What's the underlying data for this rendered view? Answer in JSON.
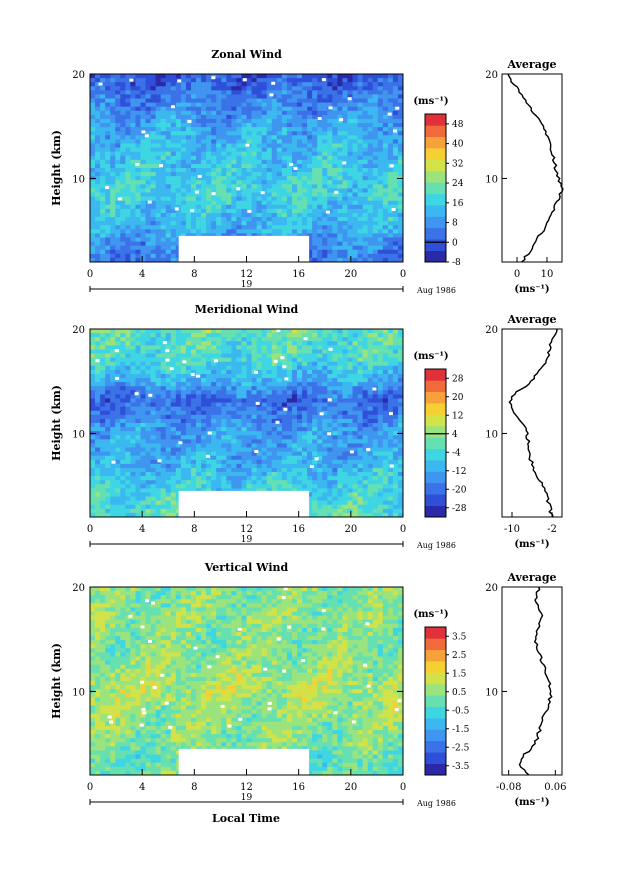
{
  "figure": {
    "xlabel": "Local Time",
    "ylabel": "Height (km)",
    "date_label": "Aug 1986",
    "day_label": "19"
  },
  "chart_data": [
    {
      "type": "heatmap",
      "title": "Zonal Wind",
      "x_ticks": [
        "0",
        "4",
        "8",
        "12",
        "16",
        "20",
        "0"
      ],
      "xlim": [
        0,
        24
      ],
      "y_ticks": [
        "20",
        "10"
      ],
      "ylim": [
        2,
        20
      ],
      "units": "(ms⁻¹)",
      "colorbar_ticks": [
        "48",
        "40",
        "32",
        "24",
        "16",
        "8",
        "0",
        "-8"
      ],
      "colorbar_range": [
        -8,
        52
      ],
      "colors": [
        "#2a2aa8",
        "#2f4fd8",
        "#3b72e8",
        "#3f95ef",
        "#3cb8f0",
        "#3fd6e4",
        "#66e0b0",
        "#9be37c",
        "#d2e34a",
        "#f6d033",
        "#f7a13a",
        "#f06a3b",
        "#e0303a"
      ],
      "missing_block": {
        "x": [
          6.8,
          16.8
        ],
        "y": [
          2,
          4.5
        ]
      },
      "profile": {
        "title": "Average",
        "x_ticks": [
          "0",
          "10"
        ],
        "xlim": [
          -5,
          15
        ],
        "xlabel": "(ms⁻¹)",
        "y_ticks": [
          "20",
          "10"
        ],
        "height": [
          2,
          3,
          4,
          5,
          6,
          7,
          8,
          9,
          10,
          11,
          12,
          13,
          14,
          15,
          16,
          17,
          18,
          19,
          20
        ],
        "value": [
          2,
          4,
          6,
          9,
          11,
          12,
          14,
          15,
          14,
          13,
          12,
          11,
          10,
          9,
          6,
          4,
          2,
          -1,
          -3
        ]
      }
    },
    {
      "type": "heatmap",
      "title": "Meridional Wind",
      "x_ticks": [
        "0",
        "4",
        "8",
        "12",
        "16",
        "20",
        "0"
      ],
      "xlim": [
        0,
        24
      ],
      "y_ticks": [
        "20",
        "10"
      ],
      "ylim": [
        2,
        20
      ],
      "units": "(ms⁻¹)",
      "colorbar_ticks": [
        "28",
        "20",
        "12",
        "4",
        "-4",
        "-12",
        "-20",
        "-28"
      ],
      "colorbar_range": [
        -32,
        32
      ],
      "colors": [
        "#2a2aa8",
        "#2f4fd8",
        "#3b72e8",
        "#3f95ef",
        "#3cb8f0",
        "#3fd6e4",
        "#66e0b0",
        "#9be37c",
        "#d2e34a",
        "#f6d033",
        "#f7a13a",
        "#f06a3b",
        "#e0303a"
      ],
      "missing_block": {
        "x": [
          6.8,
          16.8
        ],
        "y": [
          2,
          4.5
        ]
      },
      "profile": {
        "title": "Average",
        "x_ticks": [
          "-10",
          "-2"
        ],
        "xlim": [
          -12,
          0
        ],
        "xlabel": "(ms⁻¹)",
        "y_ticks": [
          "20",
          "10"
        ],
        "height": [
          2,
          3,
          4,
          5,
          6,
          7,
          8,
          9,
          10,
          11,
          12,
          13,
          14,
          15,
          16,
          17,
          18,
          19,
          20
        ],
        "value": [
          -2,
          -2.5,
          -3,
          -4,
          -5,
          -6,
          -6.5,
          -6.8,
          -7,
          -8,
          -9.5,
          -10.5,
          -9,
          -6,
          -4.5,
          -3,
          -2.5,
          -2,
          -1
        ]
      }
    },
    {
      "type": "heatmap",
      "title": "Vertical Wind",
      "x_ticks": [
        "0",
        "4",
        "8",
        "12",
        "16",
        "20",
        "0"
      ],
      "xlim": [
        0,
        24
      ],
      "y_ticks": [
        "20",
        "10"
      ],
      "ylim": [
        2,
        20
      ],
      "units": "(ms⁻¹)",
      "colorbar_ticks": [
        "3.5",
        "2.5",
        "1.5",
        "0.5",
        "-0.5",
        "-1.5",
        "-2.5",
        "-3.5"
      ],
      "colorbar_range": [
        -4,
        4
      ],
      "colors": [
        "#2a2aa8",
        "#2f4fd8",
        "#3b72e8",
        "#3f95ef",
        "#3cb8f0",
        "#3fd6e4",
        "#66e0b0",
        "#9be37c",
        "#d2e34a",
        "#f6d033",
        "#f7a13a",
        "#f06a3b",
        "#e0303a"
      ],
      "missing_block": {
        "x": [
          6.8,
          16.8
        ],
        "y": [
          2,
          4.5
        ]
      },
      "profile": {
        "title": "Average",
        "x_ticks": [
          "-0.08",
          "0.06"
        ],
        "xlim": [
          -0.1,
          0.08
        ],
        "xlabel": "(ms⁻¹)",
        "y_ticks": [
          "20",
          "10"
        ],
        "height": [
          2,
          3,
          4,
          5,
          6,
          7,
          8,
          9,
          10,
          11,
          12,
          13,
          14,
          15,
          16,
          17,
          18,
          19,
          20
        ],
        "value": [
          -0.02,
          -0.05,
          -0.03,
          0.0,
          0.01,
          0.02,
          0.03,
          0.04,
          0.05,
          0.04,
          0.03,
          0.02,
          0.01,
          0.0,
          0.01,
          0.02,
          0.01,
          0.0,
          0.01
        ]
      }
    }
  ]
}
